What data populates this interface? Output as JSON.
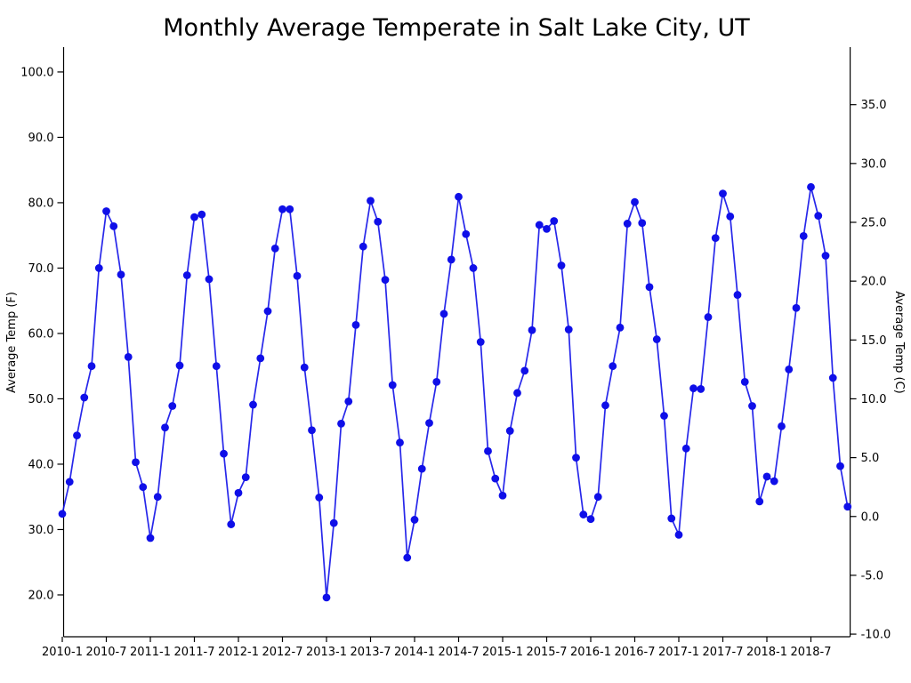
{
  "chart_data": {
    "type": "line",
    "title": "Monthly Average Temperate in Salt Lake City, UT",
    "xlabel": "",
    "ylabel_left": "Average Temp (F)",
    "ylabel_right": "Average Temp (C)",
    "grid": false,
    "legend": "none",
    "line_color": "#0f0fe8",
    "marker": "circle",
    "ylim_f": [
      13.6,
      103.8
    ],
    "x_tick_every": 6,
    "x_tick_labels": [
      "2010-1",
      "2010-7",
      "2011-1",
      "2011-7",
      "2012-1",
      "2012-7",
      "2013-1",
      "2013-7",
      "2014-1",
      "2014-7",
      "2015-1",
      "2015-7",
      "2016-1",
      "2016-7",
      "2017-1",
      "2017-7",
      "2018-1",
      "2018-7"
    ],
    "y_left_tick_labels": [
      "100.0",
      "90.0",
      "80.0",
      "70.0",
      "60.0",
      "50.0",
      "40.0",
      "30.0",
      "20.0"
    ],
    "y_right_tick_labels": [
      "35.0",
      "30.0",
      "25.0",
      "20.0",
      "15.0",
      "10.0",
      "5.0",
      "0.0",
      "-5.0",
      "-10.0"
    ],
    "x_categories": [
      "2010-1",
      "2010-2",
      "2010-3",
      "2010-4",
      "2010-5",
      "2010-6",
      "2010-7",
      "2010-8",
      "2010-9",
      "2010-10",
      "2010-11",
      "2010-12",
      "2011-1",
      "2011-2",
      "2011-3",
      "2011-4",
      "2011-5",
      "2011-6",
      "2011-7",
      "2011-8",
      "2011-9",
      "2011-10",
      "2011-11",
      "2011-12",
      "2012-1",
      "2012-2",
      "2012-3",
      "2012-4",
      "2012-5",
      "2012-6",
      "2012-7",
      "2012-8",
      "2012-9",
      "2012-10",
      "2012-11",
      "2012-12",
      "2013-1",
      "2013-2",
      "2013-3",
      "2013-4",
      "2013-5",
      "2013-6",
      "2013-7",
      "2013-8",
      "2013-9",
      "2013-10",
      "2013-11",
      "2013-12",
      "2014-1",
      "2014-2",
      "2014-3",
      "2014-4",
      "2014-5",
      "2014-6",
      "2014-7",
      "2014-8",
      "2014-9",
      "2014-10",
      "2014-11",
      "2014-12",
      "2015-1",
      "2015-2",
      "2015-3",
      "2015-4",
      "2015-5",
      "2015-6",
      "2015-7",
      "2015-8",
      "2015-9",
      "2015-10",
      "2015-11",
      "2015-12",
      "2016-1",
      "2016-2",
      "2016-3",
      "2016-4",
      "2016-5",
      "2016-6",
      "2016-7",
      "2016-8",
      "2016-9",
      "2016-10",
      "2016-11",
      "2016-12",
      "2017-1",
      "2017-2",
      "2017-3",
      "2017-4",
      "2017-5",
      "2017-6",
      "2017-7",
      "2017-8",
      "2017-9",
      "2017-10",
      "2017-11",
      "2017-12",
      "2018-1",
      "2018-2",
      "2018-3",
      "2018-4",
      "2018-5",
      "2018-6",
      "2018-7",
      "2018-8",
      "2018-9",
      "2018-10",
      "2018-11",
      "2018-12"
    ],
    "series": [
      {
        "name": "Monthly Average Temp (F)",
        "values": [
          32.4,
          37.3,
          44.4,
          50.2,
          55.0,
          70.0,
          78.7,
          76.4,
          69.0,
          56.4,
          40.3,
          36.5,
          28.7,
          35.0,
          45.6,
          48.9,
          55.1,
          68.9,
          77.8,
          78.2,
          68.3,
          55.0,
          41.6,
          30.8,
          35.6,
          38.0,
          49.1,
          56.2,
          63.4,
          73.0,
          79.0,
          79.0,
          68.8,
          54.8,
          45.2,
          34.9,
          19.6,
          31.0,
          46.2,
          49.6,
          61.3,
          73.3,
          80.3,
          77.1,
          68.2,
          52.1,
          43.3,
          25.7,
          31.5,
          39.3,
          46.3,
          52.6,
          63.0,
          71.3,
          80.9,
          75.2,
          70.0,
          58.7,
          42.0,
          37.8,
          35.2,
          45.1,
          50.9,
          54.3,
          60.5,
          76.6,
          76.0,
          77.2,
          70.4,
          60.6,
          41.0,
          32.3,
          31.6,
          35.0,
          49.0,
          55.0,
          60.9,
          76.8,
          80.1,
          76.9,
          67.1,
          59.1,
          47.4,
          31.7,
          29.2,
          42.4,
          51.6,
          51.5,
          62.5,
          74.6,
          81.4,
          77.9,
          65.9,
          52.6,
          48.9,
          34.3,
          38.1,
          37.4,
          45.8,
          54.5,
          63.9,
          74.9,
          82.4,
          78.0,
          71.9,
          53.2,
          39.7,
          33.5
        ]
      }
    ]
  }
}
